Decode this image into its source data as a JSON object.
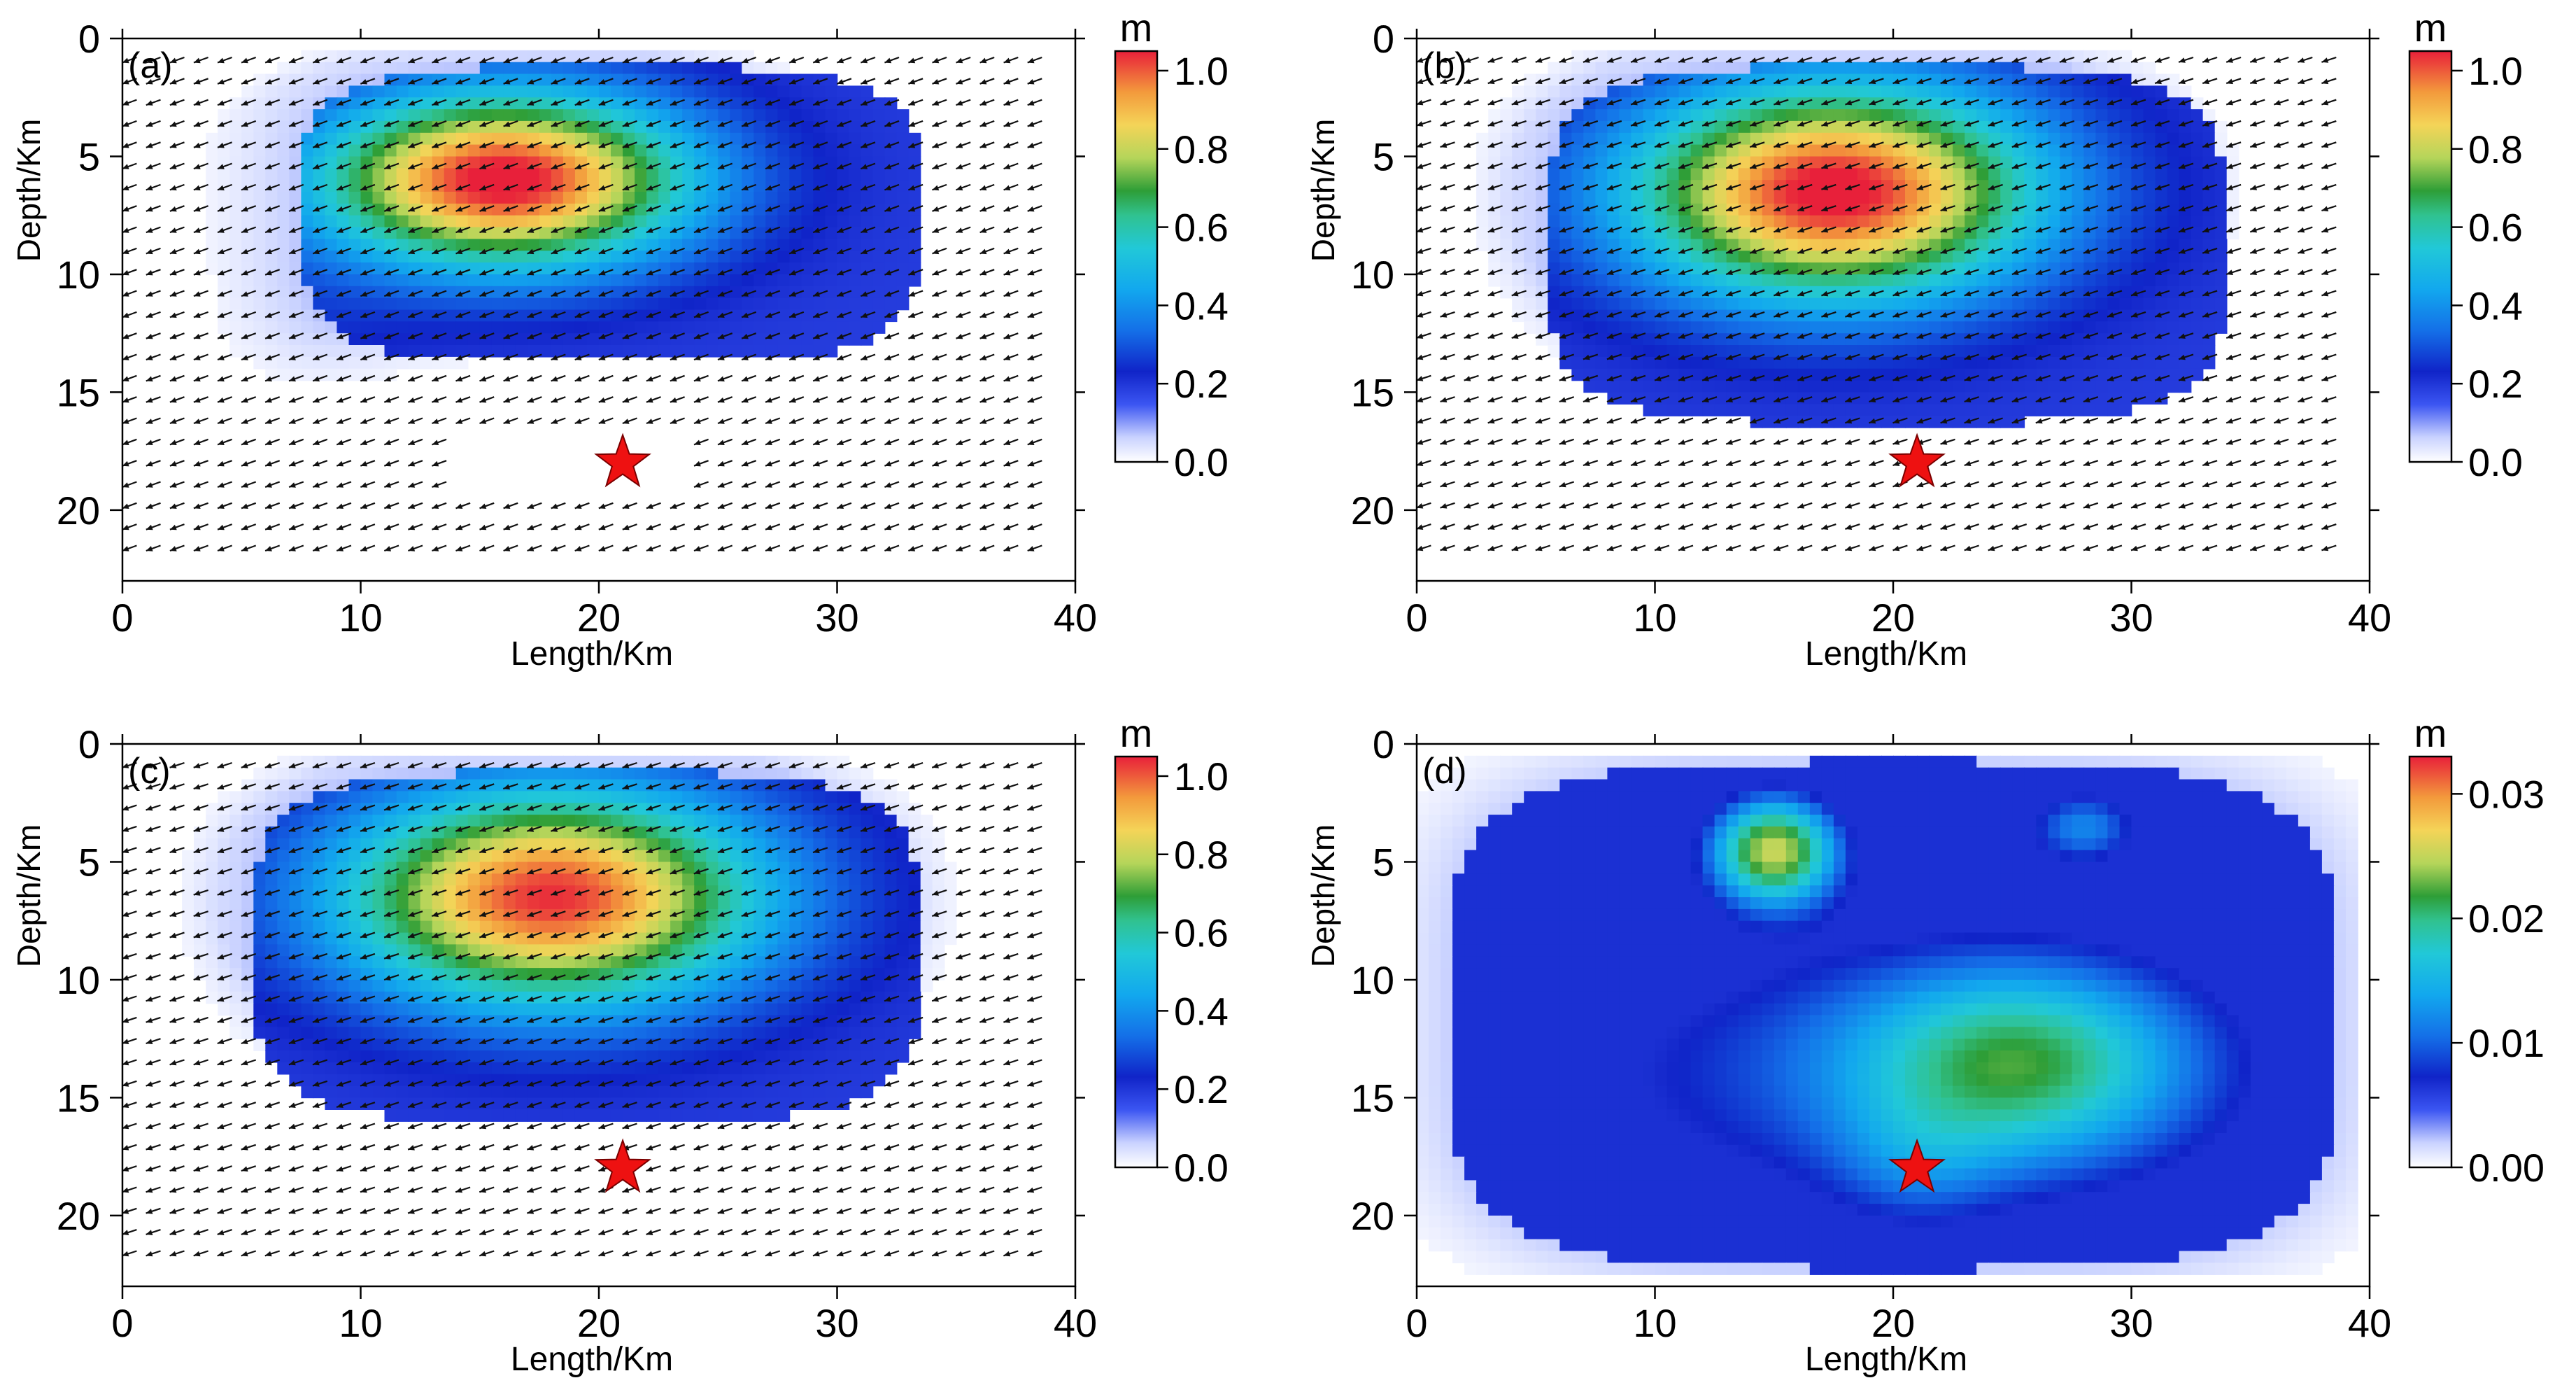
{
  "chart_data": [
    {
      "type": "heatmap",
      "panel_label": "(a)",
      "xlabel": "Length/Km",
      "ylabel": "Depth/Km",
      "xlim": [
        0,
        40
      ],
      "ylim": [
        0,
        23
      ],
      "x_ticks": [
        "0",
        "10",
        "20",
        "30",
        "40"
      ],
      "y_ticks": [
        "0",
        "5",
        "10",
        "15",
        "20"
      ],
      "colorbar": {
        "unit": "m",
        "min": 0,
        "max": 1.05,
        "ticks": [
          "0.0",
          "0.2",
          "0.4",
          "0.6",
          "0.8",
          "1.0"
        ]
      },
      "slip_blobs": [
        {
          "x": 16,
          "z": 6,
          "sx": 5.5,
          "sz": 2.6,
          "amp": 1.05
        },
        {
          "x": 5,
          "z": 14,
          "sx": 4,
          "sz": 3.5,
          "amp": 0.08
        }
      ],
      "slip_region": {
        "x_min": 7.5,
        "x_max": 33.5,
        "z_top": 1.2,
        "z_bottom": 13.7
      },
      "arrow_field": {
        "x_min": 0,
        "x_max": 39,
        "z_min": 0.8,
        "z_max": 22,
        "rake_deg": 20
      },
      "hypocenter": {
        "x": 21,
        "z": 18
      }
    },
    {
      "type": "heatmap",
      "panel_label": "(b)",
      "xlabel": "Length/Km",
      "ylabel": "Depth/Km",
      "xlim": [
        0,
        40
      ],
      "ylim": [
        0,
        23
      ],
      "x_ticks": [
        "0",
        "10",
        "20",
        "30",
        "40"
      ],
      "y_ticks": [
        "0",
        "5",
        "10",
        "15",
        "20"
      ],
      "colorbar": {
        "unit": "m",
        "min": 0,
        "max": 1.05,
        "ticks": [
          "0.0",
          "0.2",
          "0.4",
          "0.6",
          "0.8",
          "1.0"
        ]
      },
      "slip_blobs": [
        {
          "x": 17.5,
          "z": 6.5,
          "sx": 6,
          "sz": 3.2,
          "amp": 1.05
        }
      ],
      "slip_region": {
        "x_min": 5.5,
        "x_max": 34,
        "z_top": 1.2,
        "z_bottom": 16.3
      },
      "arrow_field": {
        "x_min": 0,
        "x_max": 39,
        "z_min": 0.8,
        "z_max": 22,
        "rake_deg": 18
      },
      "hypocenter": {
        "x": 21,
        "z": 18
      }
    },
    {
      "type": "heatmap",
      "panel_label": "(c)",
      "xlabel": "Length/Km",
      "ylabel": "Depth/Km",
      "xlim": [
        0,
        40
      ],
      "ylim": [
        0,
        23
      ],
      "x_ticks": [
        "0",
        "10",
        "20",
        "30",
        "40"
      ],
      "y_ticks": [
        "0",
        "5",
        "10",
        "15",
        "20"
      ],
      "colorbar": {
        "unit": "m",
        "min": 0,
        "max": 1.05,
        "ticks": [
          "0.0",
          "0.2",
          "0.4",
          "0.6",
          "0.8",
          "1.0"
        ]
      },
      "slip_blobs": [
        {
          "x": 18,
          "z": 6.5,
          "sx": 6.2,
          "sz": 3.2,
          "amp": 1.0
        }
      ],
      "slip_region": {
        "x_min": 5.5,
        "x_max": 33.5,
        "z_top": 1.2,
        "z_bottom": 16.0
      },
      "arrow_field": {
        "x_min": 0,
        "x_max": 39,
        "z_min": 0.8,
        "z_max": 22,
        "rake_deg": 18
      },
      "hypocenter": {
        "x": 21,
        "z": 18
      }
    },
    {
      "type": "heatmap",
      "panel_label": "(d)",
      "xlabel": "Length/Km",
      "ylabel": "Depth/Km",
      "xlim": [
        0,
        40
      ],
      "ylim": [
        0,
        23
      ],
      "x_ticks": [
        "0",
        "10",
        "20",
        "30",
        "40"
      ],
      "y_ticks": [
        "0",
        "5",
        "10",
        "15",
        "20"
      ],
      "colorbar": {
        "unit": "m",
        "min": 0,
        "max": 0.033,
        "ticks": [
          "0.00",
          "0.01",
          "0.02",
          "0.03"
        ]
      },
      "slip_blobs": [
        {
          "x": 15,
          "z": 4.5,
          "sx": 2.0,
          "sz": 1.7,
          "amp": 0.024
        },
        {
          "x": 28,
          "z": 3.5,
          "sx": 1.8,
          "sz": 1.2,
          "amp": 0.011
        },
        {
          "x": 25.5,
          "z": 13.5,
          "sx": 5,
          "sz": 3,
          "amp": 0.014
        },
        {
          "x": 20,
          "z": 14,
          "sx": 13,
          "sz": 5,
          "amp": 0.009
        },
        {
          "x": 21,
          "z": 18,
          "sx": 2.5,
          "sz": 2,
          "amp": 0.004
        }
      ],
      "slip_region": null,
      "arrow_field": null,
      "hypocenter": {
        "x": 21,
        "z": 18
      }
    }
  ]
}
